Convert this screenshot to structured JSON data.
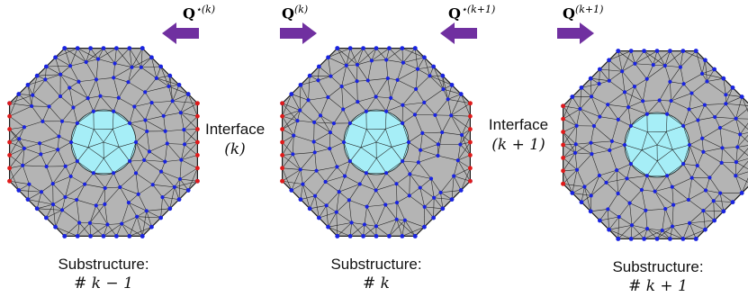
{
  "labels": {
    "q_star_k": "Q",
    "q_star_k_sup": "⋆(k)",
    "q_k": "Q",
    "q_k_sup": "(k)",
    "q_star_k1": "Q",
    "q_star_k1_sup": "⋆(k+1)",
    "q_k1": "Q",
    "q_k1_sup": "(k+1)"
  },
  "interfaces": [
    {
      "title": "Interface",
      "index": "(k)"
    },
    {
      "title": "Interface",
      "index": "(k + 1)"
    }
  ],
  "substructures": [
    {
      "title": "Substructure:",
      "index": "# k − 1"
    },
    {
      "title": "Substructure:",
      "index": "# k"
    },
    {
      "title": "Substructure:",
      "index": "# k + 1"
    }
  ],
  "colors": {
    "mesh_fill": "#b4b4b4",
    "mesh_edge": "#1e1e1e",
    "core_fill": "#a6eef7",
    "boundary_node": "#1a24e0",
    "interface_node": "#e01a1a",
    "arrow": "#7030a0"
  }
}
